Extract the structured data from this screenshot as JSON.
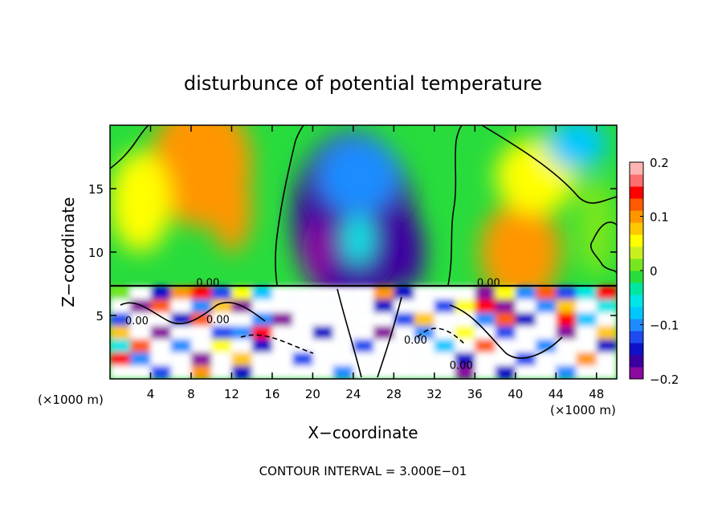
{
  "chart_data": {
    "type": "heatmap",
    "title": "disturbunce of potential temperature",
    "xlabel": "X−coordinate",
    "ylabel": "Z−coordinate",
    "x_unit_left": "(×1000 m)",
    "x_unit_right": "(×1000 m)",
    "footer": "CONTOUR INTERVAL = 3.000E−01",
    "xlim": [
      0,
      50
    ],
    "ylim": [
      0,
      20
    ],
    "x_ticks": [
      4,
      8,
      12,
      16,
      20,
      24,
      28,
      32,
      36,
      40,
      44,
      48
    ],
    "x_tick_labels": [
      "4",
      "8",
      "12",
      "16",
      "20",
      "24",
      "28",
      "32",
      "36",
      "40",
      "44",
      "48"
    ],
    "y_ticks": [
      5,
      10,
      15
    ],
    "y_tick_labels": [
      "5",
      "10",
      "15"
    ],
    "colorbar": {
      "range": [
        -0.2,
        0.2
      ],
      "tick_labels": [
        "0.2",
        "0.1",
        "0",
        "−0.1",
        "−0.2"
      ],
      "tick_values": [
        0.2,
        0.1,
        0,
        -0.1,
        -0.2
      ],
      "colors": [
        "#8a0aa0",
        "#3c00a0",
        "#1010c8",
        "#1e4bf0",
        "#1e8cff",
        "#00c8ff",
        "#00e6e6",
        "#00e6a0",
        "#28dc3c",
        "#78e61e",
        "#c8f01e",
        "#ffff00",
        "#ffc800",
        "#ff9600",
        "#ff5a00",
        "#ff0000",
        "#ff6e6e",
        "#ffb4b4"
      ]
    },
    "contour_labels": [
      {
        "text": "0.00",
        "x": 8.5,
        "y": 7.3
      },
      {
        "text": "0.00",
        "x": 9.5,
        "y": 4.4
      },
      {
        "text": "0.00",
        "x": 1.5,
        "y": 4.3
      },
      {
        "text": "0.00",
        "x": 36.2,
        "y": 7.3
      },
      {
        "text": "0.00",
        "x": 29.0,
        "y": 2.8
      },
      {
        "text": "0.00",
        "x": 33.5,
        "y": 0.8
      }
    ],
    "blobs": [
      {
        "x": 9,
        "y": 17,
        "v": 0.09,
        "rx": 5,
        "ry": 5
      },
      {
        "x": 12,
        "y": 13.5,
        "v": 0.1,
        "rx": 2,
        "ry": 3.5
      },
      {
        "x": 10.5,
        "y": 18,
        "v": 0.1,
        "rx": 2,
        "ry": 1.5
      },
      {
        "x": 3,
        "y": 14,
        "v": 0.05,
        "rx": 3,
        "ry": 4
      },
      {
        "x": 24,
        "y": 12.5,
        "v": -0.16,
        "rx": 6,
        "ry": 7
      },
      {
        "x": 24.5,
        "y": 16,
        "v": -0.1,
        "rx": 4,
        "ry": 3
      },
      {
        "x": 20.5,
        "y": 10,
        "v": -0.2,
        "rx": 1.5,
        "ry": 2.5
      },
      {
        "x": 29.5,
        "y": 10,
        "v": -0.17,
        "rx": 1.5,
        "ry": 3
      },
      {
        "x": 24.5,
        "y": 11,
        "v": -0.05,
        "rx": 1.5,
        "ry": 2
      },
      {
        "x": 40.5,
        "y": 10,
        "v": 0.11,
        "rx": 4,
        "ry": 4
      },
      {
        "x": 42,
        "y": 16,
        "v": 0.06,
        "rx": 4,
        "ry": 3
      },
      {
        "x": 46,
        "y": 18.5,
        "v": -0.07,
        "rx": 3,
        "ry": 2
      },
      {
        "x": 48,
        "y": 12,
        "v": 0.02,
        "rx": 2,
        "ry": 4
      }
    ],
    "lower_cells": [
      [
        0.02,
        0.25,
        -0.15,
        0.1,
        0.15,
        -0.12,
        0.05,
        -0.08,
        0.25,
        0.25,
        0.25,
        0.25,
        0.25,
        0.1,
        -0.15,
        0.25,
        0.25,
        0.25,
        -0.18,
        0.05,
        -0.1,
        0.12,
        -0.12,
        -0.05,
        0.15
      ],
      [
        0.25,
        -0.18,
        0.12,
        0.25,
        -0.1,
        0.08,
        -0.2,
        0.25,
        0.25,
        0.25,
        0.25,
        0.25,
        0.25,
        -0.15,
        0.25,
        0.25,
        -0.12,
        0.05,
        0.15,
        -0.18,
        0.25,
        -0.1,
        0.08,
        0.25,
        -0.05
      ],
      [
        -0.12,
        0.25,
        0.25,
        -0.15,
        0.12,
        0.25,
        0.25,
        -0.1,
        -0.18,
        0.25,
        0.25,
        0.25,
        0.25,
        0.25,
        -0.12,
        0.08,
        0.25,
        0.25,
        -0.1,
        0.12,
        -0.15,
        0.25,
        0.15,
        -0.08,
        0.25
      ],
      [
        0.08,
        0.25,
        -0.2,
        0.25,
        0.25,
        -0.12,
        -0.1,
        0.15,
        0.25,
        0.25,
        -0.15,
        0.25,
        0.25,
        -0.18,
        0.25,
        -0.1,
        0.25,
        0.05,
        0.25,
        -0.12,
        0.25,
        0.25,
        -0.2,
        0.25,
        0.08
      ],
      [
        -0.05,
        0.12,
        0.25,
        -0.1,
        0.25,
        0.05,
        0.25,
        -0.15,
        0.25,
        0.25,
        0.25,
        0.25,
        -0.12,
        0.25,
        0.25,
        0.25,
        -0.08,
        0.25,
        0.12,
        0.25,
        0.25,
        -0.1,
        0.25,
        0.25,
        -0.15
      ],
      [
        0.15,
        -0.1,
        0.25,
        0.25,
        -0.18,
        0.25,
        0.08,
        0.25,
        0.25,
        -0.12,
        0.25,
        0.25,
        0.25,
        0.25,
        0.25,
        0.25,
        0.25,
        -0.15,
        0.25,
        0.25,
        -0.12,
        0.25,
        0.25,
        0.1,
        0.25
      ],
      [
        0.25,
        0.25,
        -0.12,
        0.25,
        0.1,
        0.25,
        -0.15,
        0.25,
        0.25,
        0.25,
        0.25,
        -0.1,
        0.25,
        0.25,
        0.25,
        0.25,
        0.25,
        -0.2,
        0.25,
        -0.15,
        0.25,
        0.25,
        -0.1,
        0.25,
        0.25
      ]
    ]
  }
}
